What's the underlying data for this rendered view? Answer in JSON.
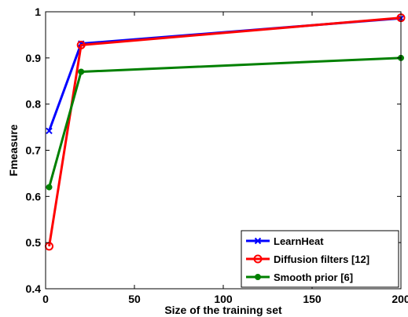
{
  "chart_data": {
    "type": "line",
    "title": "",
    "xlabel": "Size of the training set",
    "ylabel": "Fmeasure",
    "xlim": [
      0,
      200
    ],
    "ylim": [
      0.4,
      1
    ],
    "xticks": [
      0,
      50,
      100,
      150,
      200
    ],
    "yticks": [
      0.4,
      0.5,
      0.6,
      0.7,
      0.8,
      0.9,
      1
    ],
    "xtick_labels": [
      "0",
      "50",
      "100",
      "150",
      "200"
    ],
    "ytick_labels": [
      "0.4",
      "0.5",
      "0.6",
      "0.7",
      "0.8",
      "0.9",
      "1"
    ],
    "grid": false,
    "legend_position": "bottom-right",
    "series": [
      {
        "name": "LearnHeat",
        "color": "#0000ff",
        "marker": "x",
        "x": [
          2,
          20,
          200
        ],
        "y": [
          0.742,
          0.931,
          0.986
        ]
      },
      {
        "name": "Diffusion filters [12]",
        "color": "#ff0000",
        "marker": "o",
        "x": [
          2,
          20,
          200
        ],
        "y": [
          0.492,
          0.928,
          0.987
        ]
      },
      {
        "name": "Smooth prior [6]",
        "color": "#008000",
        "marker": "dot",
        "x": [
          2,
          20,
          200
        ],
        "y": [
          0.62,
          0.87,
          0.9
        ]
      }
    ]
  }
}
